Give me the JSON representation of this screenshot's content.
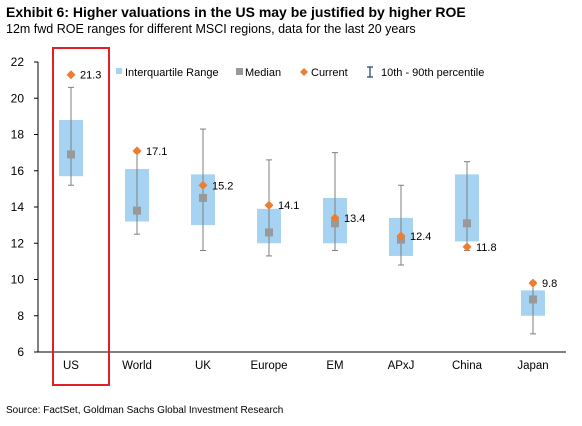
{
  "header": {
    "title": "Exhibit 6: Higher valuations in the US may be justified by higher ROE",
    "subtitle": "12m fwd ROE ranges for different MSCI regions, data for the last 20 years"
  },
  "footer": {
    "source": "Source: FactSet, Goldman Sachs Global Investment Research"
  },
  "colors": {
    "iqr_box": "#a6d3f2",
    "median_marker": "#999999",
    "current_marker": "#ed7d31",
    "whisker": "#7f7f7f",
    "highlight_border": "#e01f26",
    "axis": "#000000"
  },
  "chart_data": {
    "type": "box",
    "title": "",
    "xlabel": "",
    "ylabel": "",
    "ylim": [
      6,
      22
    ],
    "yticks": [
      6,
      8,
      10,
      12,
      14,
      16,
      18,
      20,
      22
    ],
    "grid": false,
    "legend_position": "top",
    "legend": [
      {
        "key": "iqr",
        "label": "Interquartile Range"
      },
      {
        "key": "median",
        "label": "Median"
      },
      {
        "key": "current",
        "label": "Current"
      },
      {
        "key": "range",
        "label": "10th - 90th percentile"
      }
    ],
    "highlight_category": "US",
    "categories": [
      "US",
      "World",
      "UK",
      "Europe",
      "EM",
      "APxJ",
      "China",
      "Japan"
    ],
    "series": [
      {
        "category": "US",
        "p10": 15.2,
        "q1": 15.7,
        "median": 16.9,
        "q3": 18.8,
        "p90": 20.6,
        "current": 21.3,
        "current_label": "21.3"
      },
      {
        "category": "World",
        "p10": 12.5,
        "q1": 13.2,
        "median": 13.8,
        "q3": 16.1,
        "p90": 17.0,
        "current": 17.1,
        "current_label": "17.1"
      },
      {
        "category": "UK",
        "p10": 11.6,
        "q1": 13.0,
        "median": 14.5,
        "q3": 15.8,
        "p90": 18.3,
        "current": 15.2,
        "current_label": "15.2"
      },
      {
        "category": "Europe",
        "p10": 11.3,
        "q1": 12.0,
        "median": 12.6,
        "q3": 13.9,
        "p90": 16.6,
        "current": 14.1,
        "current_label": "14.1"
      },
      {
        "category": "EM",
        "p10": 11.6,
        "q1": 12.0,
        "median": 13.1,
        "q3": 14.5,
        "p90": 17.0,
        "current": 13.4,
        "current_label": "13.4"
      },
      {
        "category": "APxJ",
        "p10": 10.8,
        "q1": 11.3,
        "median": 12.2,
        "q3": 13.4,
        "p90": 15.2,
        "current": 12.4,
        "current_label": "12.4"
      },
      {
        "category": "China",
        "p10": 11.6,
        "q1": 12.1,
        "median": 13.1,
        "q3": 15.8,
        "p90": 16.5,
        "current": 11.8,
        "current_label": "11.8"
      },
      {
        "category": "Japan",
        "p10": 7.0,
        "q1": 8.0,
        "median": 8.9,
        "q3": 9.4,
        "p90": 9.9,
        "current": 9.8,
        "current_label": "9.8"
      }
    ]
  }
}
